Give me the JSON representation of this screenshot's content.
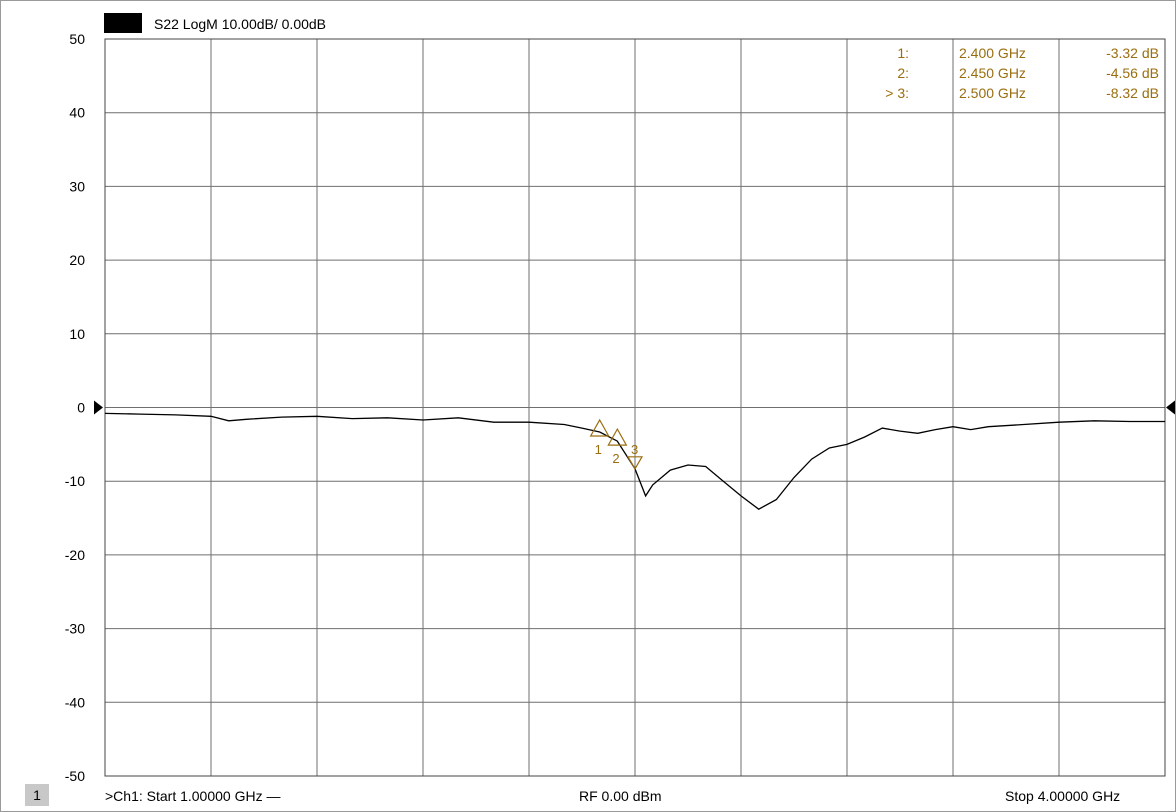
{
  "trace": {
    "title": "S22 LogM 10.00dB/ 0.00dB",
    "color": "#000000"
  },
  "markers": [
    {
      "id": "1:",
      "freq": "2.400 GHz",
      "value": "-3.32 dB",
      "x": 2.4,
      "y": -3.32,
      "label": "1"
    },
    {
      "id": "2:",
      "freq": "2.450 GHz",
      "value": "-4.56 dB",
      "x": 2.45,
      "y": -4.56,
      "label": "2"
    },
    {
      "id": "> 3:",
      "freq": "2.500 GHz",
      "value": "-8.32 dB",
      "x": 2.5,
      "y": -8.32,
      "label": "3"
    }
  ],
  "footer": {
    "channel_badge": "1",
    "start": ">Ch1:  Start  1.00000 GHz —",
    "rf": "RF  0.00 dBm",
    "stop": "Stop  4.00000 GHz"
  },
  "colors": {
    "marker": "#9a6e10",
    "grid": "#6f6f6f",
    "trace": "#000000"
  },
  "chart_data": {
    "type": "line",
    "title": "S22 LogM 10.00dB/ 0.00dB",
    "xlim": [
      1.0,
      4.0
    ],
    "ylim": [
      -50,
      50
    ],
    "yticks": [
      50,
      40,
      30,
      20,
      10,
      0,
      -10,
      -20,
      -30,
      -40,
      -50
    ],
    "grid": true,
    "series": [
      {
        "x": [
          1.0,
          1.1,
          1.2,
          1.3,
          1.35,
          1.4,
          1.5,
          1.6,
          1.7,
          1.8,
          1.9,
          2.0,
          2.1,
          2.2,
          2.3,
          2.35,
          2.4,
          2.45,
          2.5,
          2.53,
          2.55,
          2.6,
          2.65,
          2.7,
          2.75,
          2.8,
          2.85,
          2.9,
          2.95,
          3.0,
          3.05,
          3.1,
          3.15,
          3.2,
          3.25,
          3.3,
          3.35,
          3.4,
          3.45,
          3.5,
          3.6,
          3.7,
          3.8,
          3.9,
          4.0
        ],
        "y": [
          -0.8,
          -0.9,
          -1.0,
          -1.2,
          -1.8,
          -1.6,
          -1.3,
          -1.2,
          -1.5,
          -1.4,
          -1.7,
          -1.4,
          -2.0,
          -2.0,
          -2.3,
          -2.8,
          -3.32,
          -4.56,
          -8.32,
          -12.0,
          -10.5,
          -8.5,
          -7.8,
          -8.0,
          -10.0,
          -12.0,
          -13.8,
          -12.5,
          -9.5,
          -7.0,
          -5.5,
          -5.0,
          -4.0,
          -2.8,
          -3.2,
          -3.5,
          -3.0,
          -2.6,
          -3.0,
          -2.6,
          -2.3,
          -2.0,
          -1.8,
          -1.9,
          -1.9
        ]
      }
    ]
  }
}
